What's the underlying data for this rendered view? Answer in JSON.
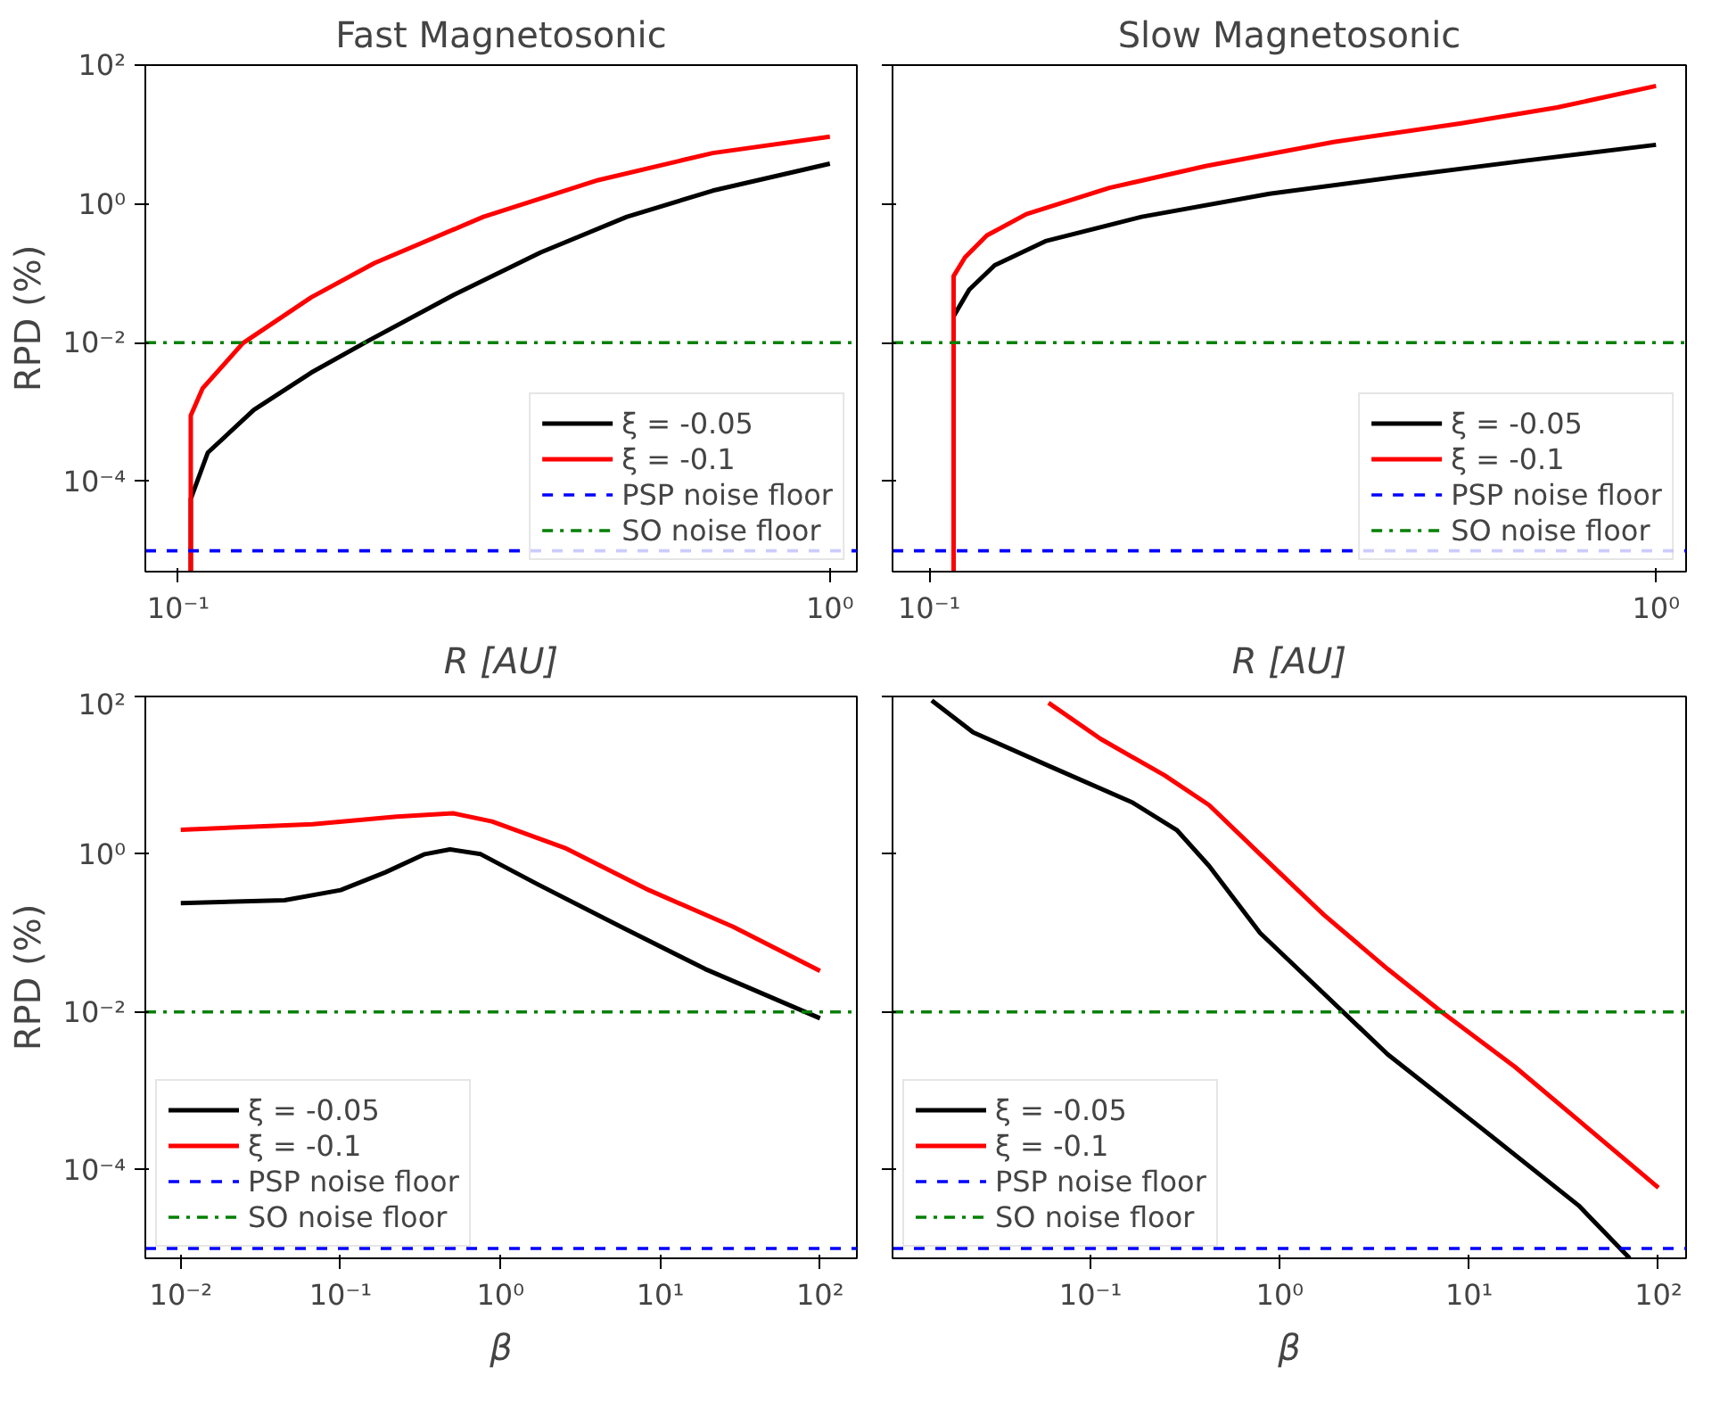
{
  "chart_data": [
    {
      "type": "line",
      "title": "Fast Magnetosonic",
      "xlabel": "R [AU]",
      "ylabel": "RPD (%)",
      "log": "xy",
      "grid": false,
      "legend": "bottom right",
      "xlim": [
        0.089,
        1.1
      ],
      "ylim": [
        5e-06,
        100
      ],
      "xticks": [
        {
          "value": 0.1,
          "label": "10⁻¹"
        },
        {
          "value": 1,
          "label": "10⁰"
        }
      ],
      "yticks": [
        {
          "value": 0.0001,
          "label": "10⁻⁴"
        },
        {
          "value": 0.01,
          "label": "10⁻²"
        },
        {
          "value": 1,
          "label": "10⁰"
        },
        {
          "value": 100,
          "label": "10²"
        }
      ],
      "series": [
        {
          "name": "ξ = -0.05",
          "color": "#000000",
          "x": [
            0.1045,
            0.1045,
            0.111,
            0.1306,
            0.16,
            0.196,
            0.265,
            0.36,
            0.488,
            0.661,
            1.0
          ],
          "values": [
            5e-06,
            5.6e-05,
            0.00026,
            0.00107,
            0.0037,
            0.0107,
            0.049,
            0.2,
            0.65,
            1.55,
            3.8
          ]
        },
        {
          "name": "ξ = -0.1",
          "color": "#ff0000",
          "x": [
            0.1045,
            0.1045,
            0.109,
            0.1256,
            0.16,
            0.2,
            0.294,
            0.441,
            0.661,
            1.0
          ],
          "values": [
            5e-06,
            0.00089,
            0.0022,
            0.0098,
            0.045,
            0.14,
            0.65,
            2.2,
            5.4,
            9.3
          ]
        }
      ],
      "ref_lines": [
        {
          "axis": "y",
          "value": 1e-05,
          "label": "PSP noise floor",
          "color": "#0000ff",
          "line_style": "dashed"
        },
        {
          "axis": "y",
          "value": 0.01,
          "label": "SO noise floor",
          "color": "#008000",
          "line_style": "dashdot"
        }
      ]
    },
    {
      "type": "line",
      "title": "Slow Magnetosonic",
      "xlabel": "R [AU]",
      "log": "xy",
      "grid": false,
      "legend": "bottom right",
      "tick_labels": "x",
      "xlim": [
        0.089,
        1.1
      ],
      "ylim": [
        5e-06,
        100
      ],
      "xticks": [
        {
          "value": 0.1,
          "label": "10⁻¹"
        },
        {
          "value": 1,
          "label": "10⁰"
        }
      ],
      "yticks": [
        {
          "value": 0.0001,
          "label": null
        },
        {
          "value": 0.01,
          "label": null
        },
        {
          "value": 1,
          "label": null
        },
        {
          "value": 100,
          "label": null
        }
      ],
      "series": [
        {
          "name": "ξ = -0.05",
          "color": "#000000",
          "x": [
            0.108,
            0.108,
            0.1135,
            0.123,
            0.1445,
            0.196,
            0.294,
            0.441,
            0.661,
            1.0
          ],
          "values": [
            5e-06,
            0.024,
            0.058,
            0.13,
            0.29,
            0.65,
            1.4,
            2.45,
            4.2,
            7.1
          ]
        },
        {
          "name": "ξ = -0.1",
          "color": "#ff0000",
          "x": [
            0.108,
            0.108,
            0.112,
            0.12,
            0.136,
            0.177,
            0.24,
            0.36,
            0.54,
            0.731,
            1.0
          ],
          "values": [
            5e-06,
            0.091,
            0.17,
            0.35,
            0.71,
            1.7,
            3.5,
            7.8,
            14.5,
            24.5,
            50
          ]
        }
      ],
      "ref_lines": [
        {
          "axis": "y",
          "value": 1e-05,
          "label": "PSP noise floor",
          "color": "#0000ff",
          "line_style": "dashed"
        },
        {
          "axis": "y",
          "value": 0.01,
          "label": "SO noise floor",
          "color": "#008000",
          "line_style": "dashdot"
        }
      ]
    },
    {
      "type": "line",
      "xlabel": "β",
      "ylabel": "RPD (%)",
      "log": "xy",
      "grid": false,
      "legend": "bottom left",
      "xlim": [
        0.006,
        170
      ],
      "ylim": [
        7.5e-06,
        100
      ],
      "xticks": [
        {
          "value": 0.01,
          "label": "10⁻²"
        },
        {
          "value": 0.1,
          "label": "10⁻¹"
        },
        {
          "value": 1,
          "label": "10⁰"
        },
        {
          "value": 10,
          "label": "10¹"
        },
        {
          "value": 100,
          "label": "10²"
        }
      ],
      "yticks": [
        {
          "value": 0.0001,
          "label": "10⁻⁴"
        },
        {
          "value": 0.01,
          "label": "10⁻²"
        },
        {
          "value": 1,
          "label": "10⁰"
        },
        {
          "value": 100,
          "label": "10²"
        }
      ],
      "series": [
        {
          "name": "ξ = -0.05",
          "color": "#000000",
          "x": [
            0.01,
            0.0446,
            0.1,
            0.191,
            0.336,
            0.483,
            0.753,
            1.69,
            5.68,
            19.1,
            100
          ],
          "values": [
            0.24,
            0.26,
            0.35,
            0.59,
            1.0,
            1.15,
            1.0,
            0.42,
            0.12,
            0.035,
            0.0083
          ]
        },
        {
          "name": "ξ = -0.1",
          "color": "#ff0000",
          "x": [
            0.01,
            0.0668,
            0.224,
            0.504,
            0.885,
            2.53,
            8.5,
            28.6,
            100
          ],
          "values": [
            2.04,
            2.4,
            3.0,
            3.3,
            2.6,
            1.2,
            0.35,
            0.12,
            0.033
          ]
        }
      ],
      "ref_lines": [
        {
          "axis": "y",
          "value": 1e-05,
          "label": "PSP noise floor",
          "color": "#0000ff",
          "line_style": "dashed"
        },
        {
          "axis": "y",
          "value": 0.01,
          "label": "SO noise floor",
          "color": "#008000",
          "line_style": "dashdot"
        }
      ]
    },
    {
      "type": "line",
      "xlabel": "β",
      "log": "xy",
      "grid": false,
      "legend": "bottom left",
      "tick_labels": "x",
      "xlim": [
        0.009,
        140
      ],
      "ylim": [
        7.5e-06,
        100
      ],
      "xticks": [
        {
          "value": 0.1,
          "label": "10⁻¹"
        },
        {
          "value": 1,
          "label": "10⁰"
        },
        {
          "value": 10,
          "label": "10¹"
        },
        {
          "value": 100,
          "label": "10²"
        }
      ],
      "yticks": [
        {
          "value": 0.0001,
          "label": null
        },
        {
          "value": 0.01,
          "label": null
        },
        {
          "value": 1,
          "label": null
        },
        {
          "value": 100,
          "label": null
        }
      ],
      "series": [
        {
          "name": "ξ = -0.05",
          "color": "#000000",
          "x": [
            0.0145,
            0.024,
            0.061,
            0.167,
            0.287,
            0.423,
            0.787,
            1.71,
            3.71,
            11.9,
            37.9,
            70.5
          ],
          "values": [
            89,
            35,
            13,
            4.5,
            2.0,
            0.71,
            0.1,
            0.017,
            0.0029,
            0.00032,
            3.5e-05,
            7.5e-06
          ]
        },
        {
          "name": "ξ = -0.1",
          "color": "#ff0000",
          "x": [
            0.06,
            0.113,
            0.246,
            0.423,
            0.787,
            1.71,
            3.71,
            7.16,
            17.5,
            37.9,
            100
          ],
          "values": [
            83,
            29,
            10,
            4.2,
            1.0,
            0.17,
            0.035,
            0.01,
            0.002,
            0.00042,
            5.9e-05
          ]
        }
      ],
      "ref_lines": [
        {
          "axis": "y",
          "value": 1e-05,
          "label": "PSP noise floor",
          "color": "#0000ff",
          "line_style": "dashed"
        },
        {
          "axis": "y",
          "value": 0.01,
          "label": "SO noise floor",
          "color": "#008000",
          "line_style": "dashdot"
        }
      ]
    }
  ]
}
